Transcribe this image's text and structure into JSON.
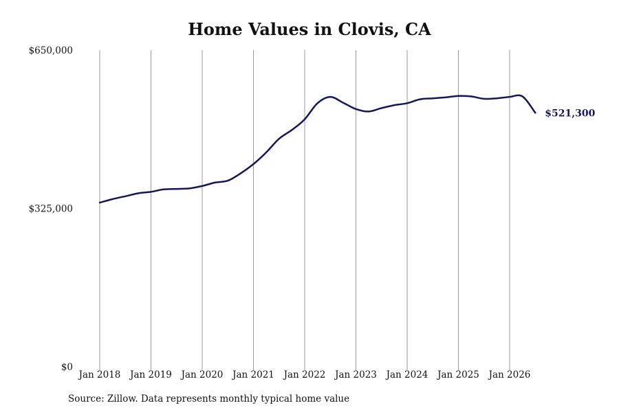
{
  "chart_data": {
    "type": "line",
    "title": "Home Values in Clovis, CA",
    "source": "Source: Zillow. Data represents monthly typical home value",
    "y_ticks": [
      {
        "value": 0,
        "label": "$0"
      },
      {
        "value": 325000,
        "label": "$325,000"
      },
      {
        "value": 650000,
        "label": "$650,000"
      }
    ],
    "ylim": [
      0,
      650000
    ],
    "x_ticks": [
      {
        "x": 2018.0,
        "label": "Jan 2018"
      },
      {
        "x": 2019.0,
        "label": "Jan 2019"
      },
      {
        "x": 2020.0,
        "label": "Jan 2020"
      },
      {
        "x": 2021.0,
        "label": "Jan 2021"
      },
      {
        "x": 2022.0,
        "label": "Jan 2022"
      },
      {
        "x": 2023.0,
        "label": "Jan 2023"
      },
      {
        "x": 2024.0,
        "label": "Jan 2024"
      },
      {
        "x": 2025.0,
        "label": "Jan 2025"
      },
      {
        "x": 2026.0,
        "label": "Jan 2026"
      }
    ],
    "grid": "vertical",
    "line_color": "#14145f",
    "end_label": "$521,300",
    "series": [
      {
        "x": [
          2018.0,
          2018.25,
          2018.5,
          2018.75,
          2019.0,
          2019.25,
          2019.5,
          2019.75,
          2020.0,
          2020.25,
          2020.5,
          2020.75,
          2021.0,
          2021.25,
          2021.5,
          2021.75,
          2022.0,
          2022.25,
          2022.5,
          2022.75,
          2023.0,
          2023.25,
          2023.5,
          2023.75,
          2024.0,
          2024.25,
          2024.5,
          2024.75,
          2025.0,
          2025.25,
          2025.5,
          2025.75,
          2026.0,
          2026.25,
          2026.5
        ],
        "values": [
          337000,
          344000,
          350000,
          356000,
          359000,
          364000,
          365000,
          366000,
          371000,
          378000,
          382000,
          397000,
          416000,
          440000,
          468000,
          486000,
          508000,
          541000,
          554000,
          542000,
          529000,
          524000,
          531000,
          537000,
          541000,
          549000,
          551000,
          553000,
          556000,
          555000,
          550000,
          551000,
          554000,
          555000,
          521300
        ]
      }
    ]
  }
}
